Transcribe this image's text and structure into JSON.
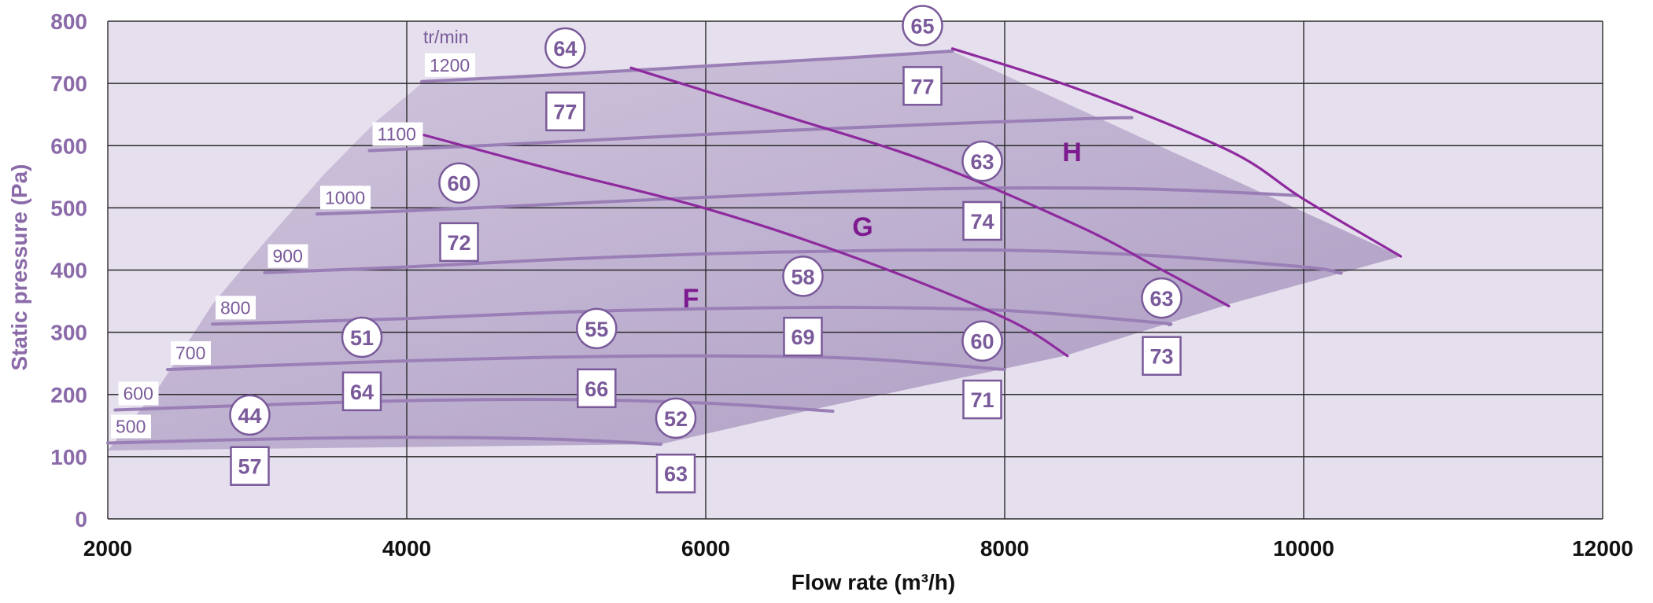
{
  "chart_data": {
    "type": "line",
    "title": "",
    "xlabel": "Flow rate (m³/h)",
    "ylabel": "Static pressure  (Pa)",
    "xlim": [
      2000,
      12000
    ],
    "ylim": [
      0,
      800
    ],
    "x_ticks": [
      "2000",
      "4000",
      "6000",
      "8000",
      "10000",
      "12000"
    ],
    "y_ticks": [
      "0",
      "100",
      "200",
      "300",
      "400",
      "500",
      "600",
      "700",
      "800"
    ],
    "grid": true,
    "speed_unit": "tr/min",
    "colors": {
      "plot_bg": "#e6e0ee",
      "envelope_fill": "#b9a9cc",
      "speed_curve": "#9a7fb6",
      "model_curve": "#8e2a9e",
      "marker": "#7a5a9a",
      "model_label": "#7d1a8f"
    },
    "speed_curves": [
      {
        "label": "500",
        "points": [
          [
            2000,
            122
          ],
          [
            3000,
            128
          ],
          [
            4000,
            131
          ],
          [
            5000,
            128
          ],
          [
            5700,
            120
          ]
        ]
      },
      {
        "label": "600",
        "points": [
          [
            2050,
            175
          ],
          [
            3000,
            183
          ],
          [
            4000,
            190
          ],
          [
            5000,
            192
          ],
          [
            6000,
            186
          ],
          [
            6850,
            173
          ]
        ]
      },
      {
        "label": "700",
        "points": [
          [
            2400,
            240
          ],
          [
            3000,
            246
          ],
          [
            4000,
            254
          ],
          [
            5000,
            260
          ],
          [
            6000,
            262
          ],
          [
            7000,
            258
          ],
          [
            8000,
            240
          ]
        ]
      },
      {
        "label": "800",
        "points": [
          [
            2700,
            313
          ],
          [
            4000,
            322
          ],
          [
            5000,
            332
          ],
          [
            6000,
            338
          ],
          [
            7000,
            340
          ],
          [
            8000,
            335
          ],
          [
            9000,
            316
          ],
          [
            9100,
            312
          ]
        ]
      },
      {
        "label": "900",
        "points": [
          [
            3050,
            396
          ],
          [
            4000,
            405
          ],
          [
            5000,
            417
          ],
          [
            6000,
            426
          ],
          [
            7000,
            431
          ],
          [
            8000,
            432
          ],
          [
            9000,
            423
          ],
          [
            10000,
            405
          ],
          [
            10250,
            395
          ]
        ]
      },
      {
        "label": "1000",
        "points": [
          [
            3400,
            490
          ],
          [
            4000,
            495
          ],
          [
            5000,
            506
          ],
          [
            6000,
            517
          ],
          [
            7000,
            527
          ],
          [
            8000,
            532
          ],
          [
            9000,
            530
          ],
          [
            9950,
            520
          ]
        ]
      },
      {
        "label": "1100",
        "points": [
          [
            3750,
            592
          ],
          [
            4500,
            600
          ],
          [
            5500,
            612
          ],
          [
            6500,
            624
          ],
          [
            7500,
            634
          ],
          [
            8500,
            643
          ],
          [
            8850,
            645
          ]
        ]
      },
      {
        "label": "1200",
        "points": [
          [
            4100,
            703
          ],
          [
            5000,
            714
          ],
          [
            6000,
            728
          ],
          [
            7000,
            742
          ],
          [
            7650,
            752
          ]
        ]
      }
    ],
    "model_curves": [
      {
        "label": "F",
        "points": [
          [
            4100,
            618
          ],
          [
            5000,
            560
          ],
          [
            6000,
            499
          ],
          [
            7000,
            420
          ],
          [
            8000,
            323
          ],
          [
            8420,
            262
          ]
        ]
      },
      {
        "label": "G",
        "points": [
          [
            5500,
            725
          ],
          [
            6500,
            650
          ],
          [
            7500,
            573
          ],
          [
            8500,
            470
          ],
          [
            9000,
            407
          ],
          [
            9500,
            342
          ]
        ]
      },
      {
        "label": "H",
        "points": [
          [
            7650,
            756
          ],
          [
            8500,
            690
          ],
          [
            9500,
            592
          ],
          [
            10000,
            514
          ],
          [
            10650,
            422
          ]
        ]
      }
    ],
    "model_labels": [
      {
        "text": "F",
        "x": 5900,
        "y": 355
      },
      {
        "text": "G",
        "x": 7050,
        "y": 470
      },
      {
        "text": "H",
        "x": 8450,
        "y": 590
      }
    ],
    "envelope": [
      [
        2000,
        110
      ],
      [
        2350,
        215
      ],
      [
        2700,
        345
      ],
      [
        3050,
        445
      ],
      [
        3450,
        555
      ],
      [
        3800,
        640
      ],
      [
        4100,
        700
      ],
      [
        7650,
        752
      ],
      [
        10650,
        422
      ],
      [
        9500,
        345
      ],
      [
        8400,
        262
      ],
      [
        6700,
        175
      ],
      [
        5700,
        120
      ],
      [
        2000,
        110
      ]
    ],
    "circle_markers": [
      {
        "value": "44",
        "x": 2950,
        "y": 167
      },
      {
        "value": "51",
        "x": 3700,
        "y": 292
      },
      {
        "value": "60",
        "x": 4350,
        "y": 540
      },
      {
        "value": "64",
        "x": 5060,
        "y": 757
      },
      {
        "value": "55",
        "x": 5270,
        "y": 306
      },
      {
        "value": "52",
        "x": 5800,
        "y": 162
      },
      {
        "value": "58",
        "x": 6650,
        "y": 390
      },
      {
        "value": "65",
        "x": 7450,
        "y": 793
      },
      {
        "value": "63",
        "x": 7850,
        "y": 575
      },
      {
        "value": "60",
        "x": 7850,
        "y": 286
      },
      {
        "value": "63",
        "x": 9050,
        "y": 355
      }
    ],
    "square_markers": [
      {
        "value": "57",
        "x": 2950,
        "y": 85
      },
      {
        "value": "64",
        "x": 3700,
        "y": 205
      },
      {
        "value": "72",
        "x": 4350,
        "y": 445
      },
      {
        "value": "77",
        "x": 5060,
        "y": 655
      },
      {
        "value": "66",
        "x": 5270,
        "y": 210
      },
      {
        "value": "63",
        "x": 5800,
        "y": 73
      },
      {
        "value": "69",
        "x": 6650,
        "y": 293
      },
      {
        "value": "77",
        "x": 7450,
        "y": 696
      },
      {
        "value": "74",
        "x": 7850,
        "y": 479
      },
      {
        "value": "71",
        "x": 7850,
        "y": 192
      },
      {
        "value": "73",
        "x": 9050,
        "y": 262
      }
    ]
  }
}
